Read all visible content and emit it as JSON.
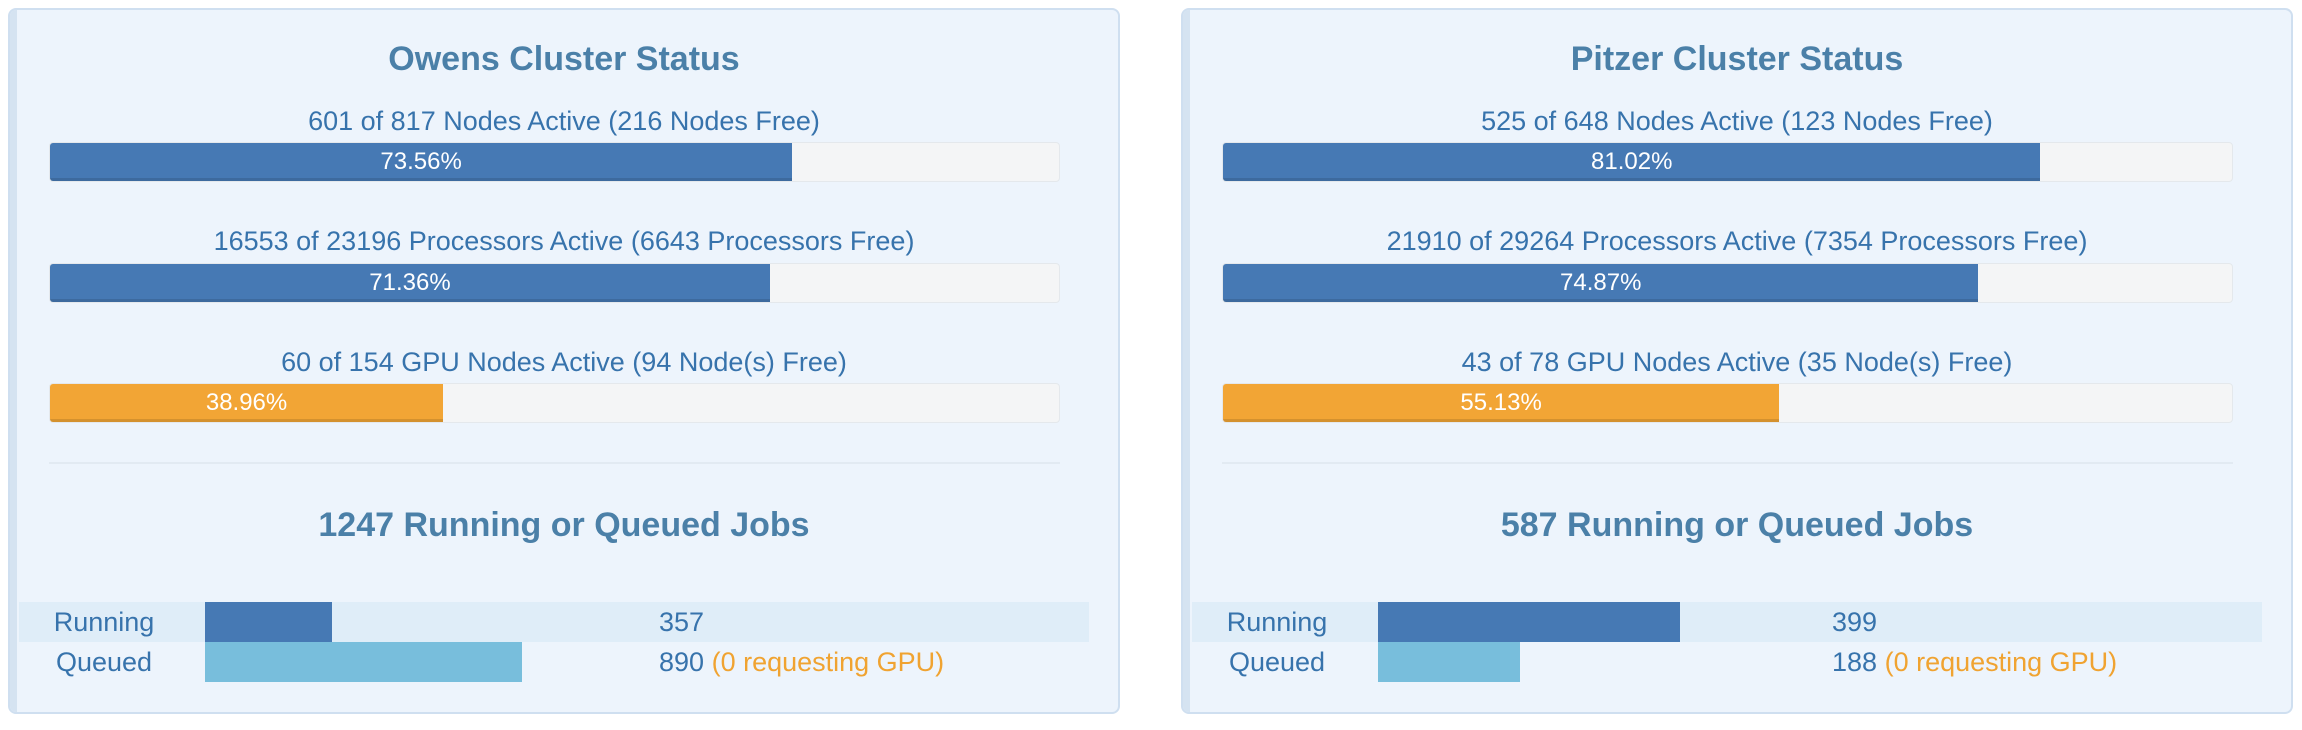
{
  "colors": {
    "primary": "#4679b4",
    "warning": "#f2a535",
    "queued": "#78bedc",
    "title": "#4b80a8",
    "text": "#3773ac"
  },
  "clusters": [
    {
      "title": "Owens Cluster Status",
      "nodes": {
        "label": "601 of 817 Nodes Active (216 Nodes Free)",
        "percent_text": "73.56%",
        "fraction": 0.7356
      },
      "processors": {
        "label": "16553 of 23196 Processors Active (6643 Processors Free)",
        "percent_text": "71.36%",
        "fraction": 0.7136
      },
      "gpu_nodes": {
        "label": "60 of 154 GPU Nodes Active (94 Node(s) Free)",
        "percent_text": "38.96%",
        "fraction": 0.3896
      },
      "jobs_title": "1247 Running or Queued Jobs",
      "running": {
        "label": "Running",
        "count": "357",
        "fraction": 0.2861
      },
      "queued": {
        "label": "Queued",
        "count": "890",
        "gpu_note": "(0 requesting GPU)",
        "fraction": 0.7139
      }
    },
    {
      "title": "Pitzer Cluster Status",
      "nodes": {
        "label": "525 of 648 Nodes Active (123 Nodes Free)",
        "percent_text": "81.02%",
        "fraction": 0.8102
      },
      "processors": {
        "label": "21910 of 29264 Processors Active (7354 Processors Free)",
        "percent_text": "74.87%",
        "fraction": 0.7487
      },
      "gpu_nodes": {
        "label": "43 of 78 GPU Nodes Active (35 Node(s) Free)",
        "percent_text": "55.13%",
        "fraction": 0.5513
      },
      "jobs_title": "587 Running or Queued Jobs",
      "running": {
        "label": "Running",
        "count": "399",
        "fraction": 0.6797
      },
      "queued": {
        "label": "Queued",
        "count": "188",
        "gpu_note": "(0 requesting GPU)",
        "fraction": 0.3203
      }
    }
  ]
}
